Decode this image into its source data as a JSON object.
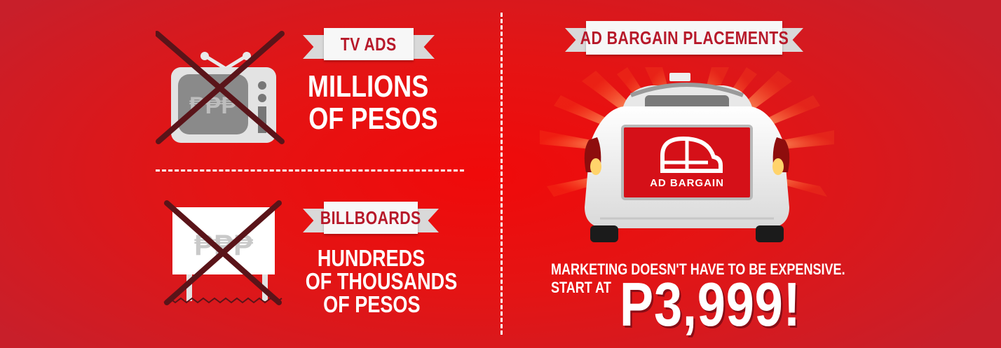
{
  "left_panel": {
    "tv": {
      "ribbon_label": "TV ADS",
      "line1": "MILLIONS",
      "line2": "OF PESOS",
      "icon_text": "₱₱₱"
    },
    "billboard": {
      "ribbon_label": "BILLBOARDS",
      "line1": "HUNDREDS",
      "line2": "OF THOUSANDS",
      "line3": "OF PESOS",
      "icon_text": "₱₱₱"
    }
  },
  "right_panel": {
    "ribbon_label": "AD BARGAIN  PLACEMENTS",
    "car_brand": "AD BARGAIN",
    "tagline": "MARKETING DOESN'T HAVE TO BE EXPENSIVE.",
    "start_at": "START AT",
    "price": "P3,999!"
  },
  "colors": {
    "background": "#e41414",
    "ribbon_text": "#b7192a",
    "cross": "#5a1419"
  }
}
